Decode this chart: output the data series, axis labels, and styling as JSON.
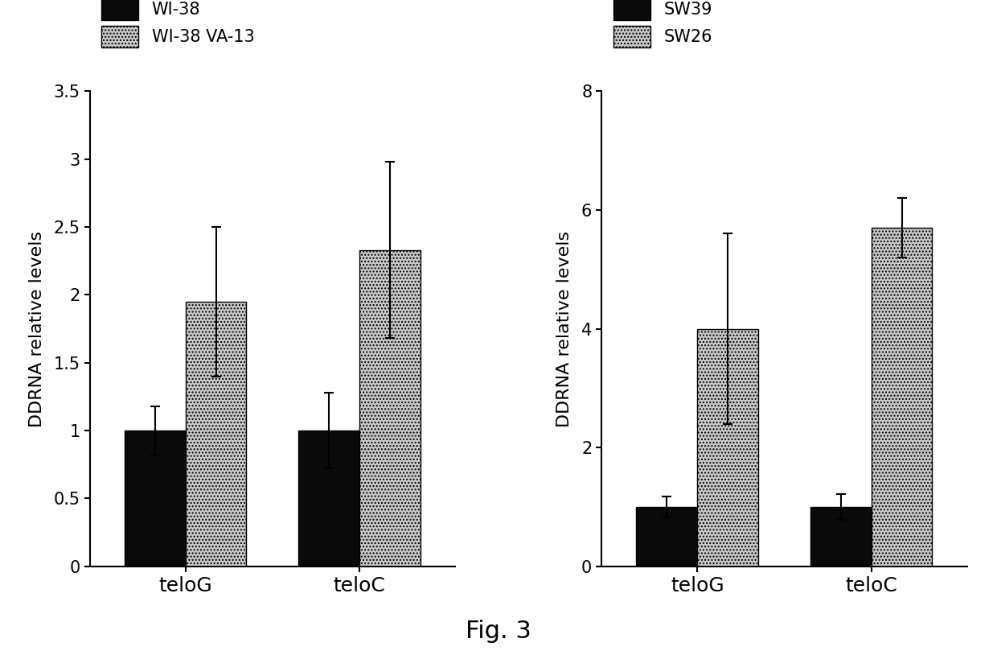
{
  "left_chart": {
    "ylabel": "DDRNA relative levels",
    "groups": [
      "teloG",
      "teloC"
    ],
    "series": [
      {
        "label": "WI-38",
        "color": "#0a0a0a",
        "hatch": "",
        "values": [
          1.0,
          1.0
        ],
        "errors": [
          0.18,
          0.28
        ]
      },
      {
        "label": "WI-38 VA-13",
        "color": "#c8c8c8",
        "hatch": "....",
        "values": [
          1.95,
          2.33
        ],
        "errors": [
          0.55,
          0.65
        ]
      }
    ],
    "ylim": [
      0,
      3.5
    ],
    "yticks": [
      0.0,
      0.5,
      1.0,
      1.5,
      2.0,
      2.5,
      3.0,
      3.5
    ]
  },
  "right_chart": {
    "ylabel": "DDRNA relative levels",
    "groups": [
      "teloG",
      "teloC"
    ],
    "series": [
      {
        "label": "SW39",
        "color": "#0a0a0a",
        "hatch": "",
        "values": [
          1.0,
          1.0
        ],
        "errors": [
          0.18,
          0.22
        ]
      },
      {
        "label": "SW26",
        "color": "#c8c8c8",
        "hatch": "....",
        "values": [
          4.0,
          5.7
        ],
        "errors": [
          1.6,
          0.5
        ]
      }
    ],
    "ylim": [
      0,
      8
    ],
    "yticks": [
      0,
      2,
      4,
      6,
      8
    ]
  },
  "fig_label": "Fig. 3",
  "background_color": "#ffffff",
  "bar_width": 0.35,
  "legend_fontsize": 15,
  "tick_fontsize": 15,
  "ylabel_fontsize": 16,
  "xlabel_fontsize": 18,
  "fig_label_fontsize": 22
}
